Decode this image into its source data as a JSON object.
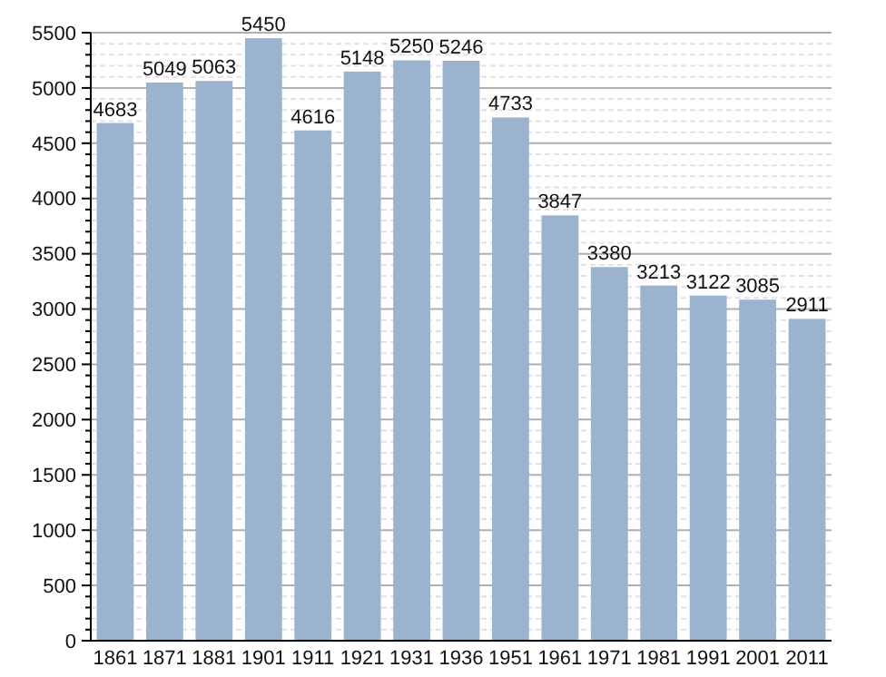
{
  "chart_data": {
    "type": "bar",
    "categories": [
      "1861",
      "1871",
      "1881",
      "1901",
      "1911",
      "1921",
      "1931",
      "1936",
      "1951",
      "1961",
      "1971",
      "1981",
      "1991",
      "2001",
      "2011"
    ],
    "values": [
      4683,
      5049,
      5063,
      5450,
      4616,
      5148,
      5250,
      5246,
      4733,
      3847,
      3380,
      3213,
      3122,
      3085,
      2911
    ],
    "color": "#9bb3cf",
    "data_labels": true,
    "grid": "y",
    "ylim": [
      0,
      5500
    ],
    "yticks": [
      0,
      {
        "value": 100,
        "label": null
      },
      {
        "value": 200,
        "label": null
      },
      {
        "value": 300,
        "label": null
      },
      {
        "value": 400,
        "label": null
      },
      500,
      {
        "value": 600,
        "label": null
      },
      {
        "value": 700,
        "label": null
      },
      {
        "value": 800,
        "label": null
      },
      {
        "value": 900,
        "label": null
      },
      1000,
      {
        "value": 1100,
        "label": null
      },
      {
        "value": 1200,
        "label": null
      },
      {
        "value": 1300,
        "label": null
      },
      {
        "value": 1400,
        "label": null
      },
      1500,
      {
        "value": 1600,
        "label": null
      },
      {
        "value": 1700,
        "label": null
      },
      {
        "value": 1800,
        "label": null
      },
      {
        "value": 1900,
        "label": null
      },
      2000,
      {
        "value": 2100,
        "label": null
      },
      {
        "value": 2200,
        "label": null
      },
      {
        "value": 2300,
        "label": null
      },
      {
        "value": 2400,
        "label": null
      },
      2500,
      {
        "value": 2600,
        "label": null
      },
      {
        "value": 2700,
        "label": null
      },
      {
        "value": 2800,
        "label": null
      },
      {
        "value": 2900,
        "label": null
      },
      3000,
      {
        "value": 3100,
        "label": null
      },
      {
        "value": 3200,
        "label": null
      },
      {
        "value": 3300,
        "label": null
      },
      {
        "value": 3400,
        "label": null
      },
      3500,
      {
        "value": 3600,
        "label": null
      },
      {
        "value": 3700,
        "label": null
      },
      {
        "value": 3800,
        "label": null
      },
      {
        "value": 3900,
        "label": null
      },
      4000,
      {
        "value": 4100,
        "label": null
      },
      {
        "value": 4200,
        "label": null
      },
      {
        "value": 4300,
        "label": null
      },
      {
        "value": 4400,
        "label": null
      },
      4500,
      {
        "value": 4600,
        "label": null
      },
      {
        "value": 4700,
        "label": null
      },
      {
        "value": 4800,
        "label": null
      },
      {
        "value": 4900,
        "label": null
      },
      5000,
      {
        "value": 5100,
        "label": null
      },
      {
        "value": 5200,
        "label": null
      },
      {
        "value": 5300,
        "label": null
      },
      {
        "value": 5400,
        "label": null
      },
      5500
    ]
  }
}
